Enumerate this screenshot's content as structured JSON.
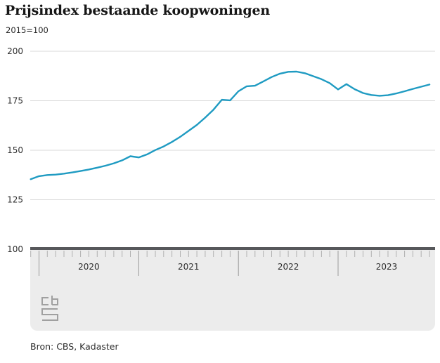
{
  "header": {
    "title": "Prijsindex bestaande koopwoningen",
    "subtitle": "2015=100"
  },
  "source": {
    "label": "Bron: CBS, Kadaster"
  },
  "logo": {
    "name": "cbs-logo"
  },
  "colors": {
    "line": "#1f9bc2",
    "grid": "#d8d8d8",
    "axis_bar": "#57585b",
    "panel": "#ececec",
    "minor_tick": "#b0b0b0",
    "year_divider": "#9a9a9a",
    "axis_text": "#2d2d2d",
    "title_text": "#161616"
  },
  "chart_data": {
    "type": "line",
    "title": "Prijsindex bestaande koopwoningen",
    "unit_label": "2015=100",
    "xlabel": "",
    "ylabel": "",
    "ylim": [
      100,
      200
    ],
    "y_ticks": [
      100,
      125,
      150,
      175,
      200
    ],
    "grid": true,
    "legend_position": "none",
    "x_frequency": "monthly",
    "x_start": "2019-12",
    "x_end": "2023-12",
    "year_labels": [
      "2020",
      "2021",
      "2022",
      "2023"
    ],
    "months": [
      "2019-12",
      "2020-01",
      "2020-02",
      "2020-03",
      "2020-04",
      "2020-05",
      "2020-06",
      "2020-07",
      "2020-08",
      "2020-09",
      "2020-10",
      "2020-11",
      "2020-12",
      "2021-01",
      "2021-02",
      "2021-03",
      "2021-04",
      "2021-05",
      "2021-06",
      "2021-07",
      "2021-08",
      "2021-09",
      "2021-10",
      "2021-11",
      "2021-12",
      "2022-01",
      "2022-02",
      "2022-03",
      "2022-04",
      "2022-05",
      "2022-06",
      "2022-07",
      "2022-08",
      "2022-09",
      "2022-10",
      "2022-11",
      "2022-12",
      "2023-01",
      "2023-02",
      "2023-03",
      "2023-04",
      "2023-05",
      "2023-06",
      "2023-07",
      "2023-08",
      "2023-09",
      "2023-10",
      "2023-11",
      "2023-12"
    ],
    "series": [
      {
        "name": "Prijsindex bestaande koopwoningen",
        "values": [
          135.4,
          136.9,
          137.5,
          137.7,
          138.2,
          138.8,
          139.5,
          140.3,
          141.2,
          142.2,
          143.4,
          144.9,
          147.0,
          146.4,
          147.9,
          150.1,
          151.9,
          154.2,
          156.8,
          159.8,
          162.8,
          166.5,
          170.5,
          175.5,
          175.2,
          179.8,
          182.3,
          182.6,
          184.8,
          187.0,
          188.7,
          189.6,
          189.7,
          188.9,
          187.4,
          185.9,
          183.9,
          180.7,
          183.4,
          180.8,
          178.9,
          177.9,
          177.5,
          177.8,
          178.7,
          179.8,
          181.0,
          182.1,
          183.2
        ]
      }
    ]
  }
}
